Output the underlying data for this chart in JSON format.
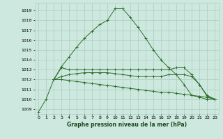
{
  "background_color": "#cde8de",
  "grid_color": "#b0ccbf",
  "line_color": "#2d6e2d",
  "xlabel": "Graphe pression niveau de la mer (hPa)",
  "ylim": [
    1008.5,
    1019.8
  ],
  "xlim": [
    -0.5,
    23.5
  ],
  "yticks": [
    1009,
    1010,
    1011,
    1012,
    1013,
    1014,
    1015,
    1016,
    1017,
    1018,
    1019
  ],
  "xticks": [
    0,
    1,
    2,
    3,
    4,
    5,
    6,
    7,
    8,
    9,
    10,
    11,
    12,
    13,
    14,
    15,
    16,
    17,
    18,
    19,
    20,
    21,
    22,
    23
  ],
  "series": [
    {
      "x": [
        0,
        1,
        2,
        3,
        4,
        5,
        6,
        7,
        8,
        9,
        10,
        11,
        12,
        13,
        14,
        15,
        16,
        17,
        18,
        19,
        20,
        21,
        22,
        23
      ],
      "y": [
        1008.7,
        1010.0,
        1012.0,
        1013.3,
        1014.3,
        1015.3,
        1016.2,
        1016.9,
        1017.6,
        1018.0,
        1019.2,
        1019.2,
        1018.3,
        1017.3,
        1016.2,
        1015.0,
        1014.0,
        1013.2,
        1012.5,
        1011.5,
        1010.4,
        1010.2,
        1010.0,
        1010.0
      ],
      "linestyle": "-",
      "marker": "+"
    },
    {
      "x": [
        2,
        3,
        4,
        5,
        6,
        7,
        8,
        9,
        10,
        11,
        12,
        13,
        14,
        15,
        16,
        17,
        18,
        19,
        20,
        21,
        22,
        23
      ],
      "y": [
        1012.0,
        1013.2,
        1013.0,
        1013.0,
        1013.0,
        1013.0,
        1013.0,
        1013.0,
        1013.0,
        1013.0,
        1013.0,
        1013.0,
        1013.0,
        1013.0,
        1013.0,
        1013.0,
        1013.2,
        1013.2,
        1012.5,
        1011.5,
        1010.3,
        1010.0
      ],
      "linestyle": "-",
      "marker": "+"
    },
    {
      "x": [
        2,
        3,
        4,
        5,
        6,
        7,
        8,
        9,
        10,
        11,
        12,
        13,
        14,
        15,
        16,
        17,
        18,
        19,
        20,
        21,
        22,
        23
      ],
      "y": [
        1012.0,
        1012.3,
        1012.5,
        1012.6,
        1012.7,
        1012.7,
        1012.7,
        1012.7,
        1012.6,
        1012.5,
        1012.4,
        1012.3,
        1012.3,
        1012.3,
        1012.3,
        1012.5,
        1012.5,
        1012.5,
        1012.3,
        1011.5,
        1010.4,
        1010.0
      ],
      "linestyle": "-",
      "marker": "+"
    },
    {
      "x": [
        2,
        3,
        4,
        5,
        6,
        7,
        8,
        9,
        10,
        11,
        12,
        13,
        14,
        15,
        16,
        17,
        18,
        19,
        20,
        21,
        22,
        23
      ],
      "y": [
        1012.0,
        1012.0,
        1011.9,
        1011.8,
        1011.7,
        1011.6,
        1011.5,
        1011.4,
        1011.3,
        1011.2,
        1011.1,
        1011.0,
        1010.9,
        1010.8,
        1010.7,
        1010.7,
        1010.6,
        1010.5,
        1010.4,
        1010.3,
        1010.2,
        1010.0
      ],
      "linestyle": "-",
      "marker": "+"
    }
  ]
}
